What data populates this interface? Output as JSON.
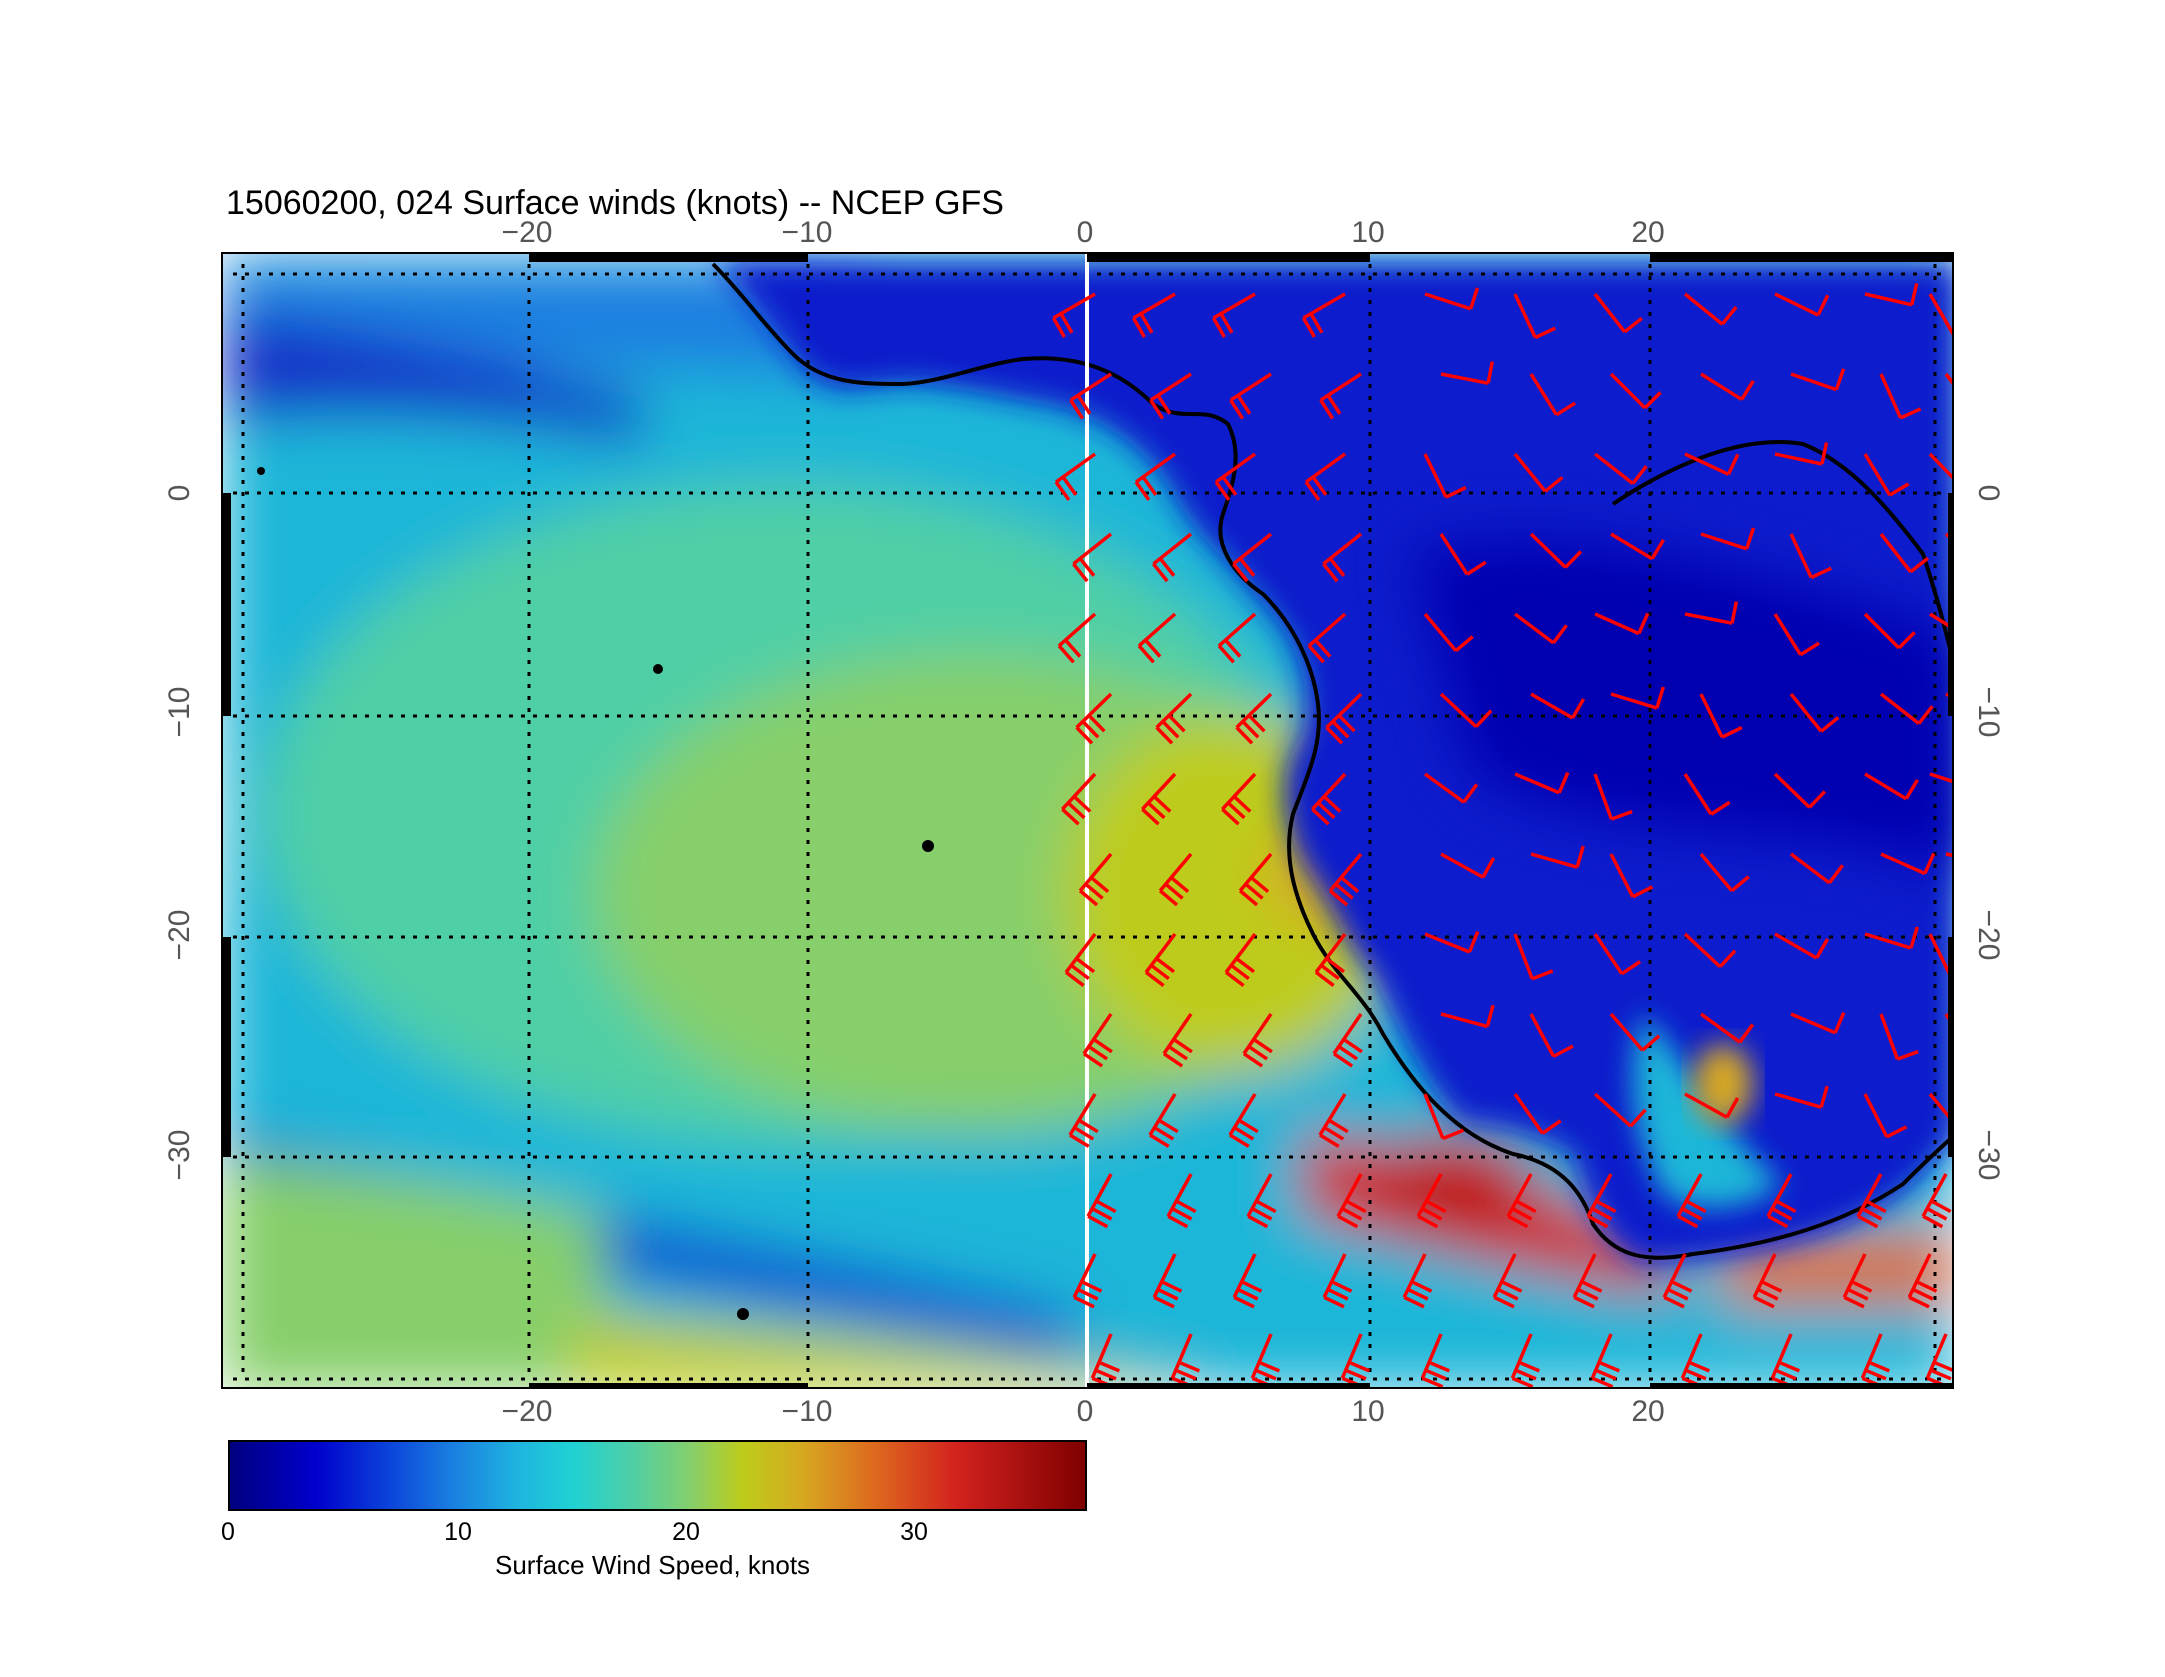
{
  "title": "15060200, 024 Surface winds (knots) -- NCEP GFS",
  "map": {
    "lon_ticks": [
      "−20",
      "−10",
      "0",
      "10",
      "20"
    ],
    "lat_ticks": [
      "0",
      "−10",
      "−20",
      "−30"
    ],
    "grid": true,
    "coastline_color": "#000000",
    "barb_color": "#ff0000",
    "meridian_line_color": "#ffffff"
  },
  "colorbar": {
    "label": "Surface Wind Speed, knots",
    "ticks": [
      "0",
      "10",
      "20",
      "30"
    ],
    "range_knots": [
      0,
      38
    ],
    "colormap": "jet"
  }
}
